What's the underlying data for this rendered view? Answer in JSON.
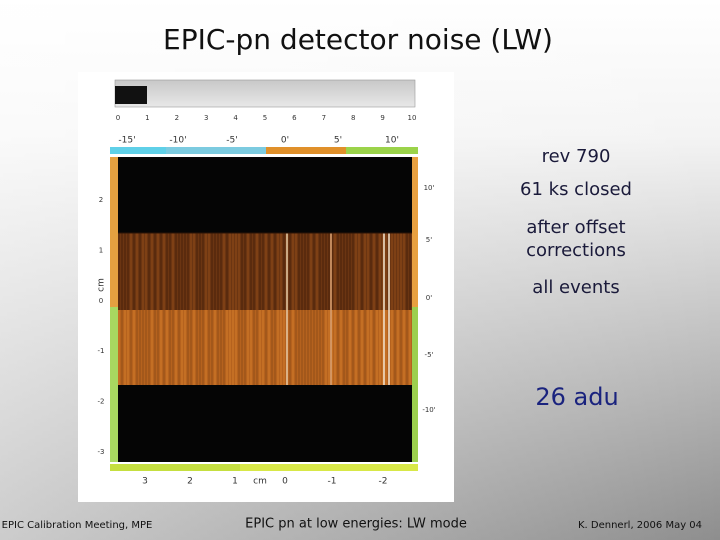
{
  "title": "EPIC-pn detector noise  (LW)",
  "notes": [
    "rev 790",
    "61 ks closed",
    "after offset",
    "corrections",
    "all events"
  ],
  "highlight": "26 adu",
  "image": {
    "histogram_axis": [
      "0",
      "1",
      "2",
      "3",
      "4",
      "5",
      "6",
      "7",
      "8",
      "9",
      "10"
    ],
    "top_axis": [
      "-15'",
      "-10'",
      "-5'",
      "0'",
      "5'",
      "10'"
    ],
    "left_axis": [
      "2",
      "1",
      "0",
      "-1",
      "-2",
      "-3"
    ],
    "left_axis_label": "cm",
    "right_axis": [
      "10'",
      "5'",
      "0'",
      "-5'",
      "-10'"
    ],
    "bottom_axis": [
      "3",
      "2",
      "1",
      "cm",
      "0",
      "-1",
      "-2"
    ]
  },
  "footer": {
    "left": "EPIC Calibration Meeting, MPE",
    "center": "EPIC pn at low energies: LW mode",
    "right": "K. Dennerl, 2006 May 04"
  }
}
